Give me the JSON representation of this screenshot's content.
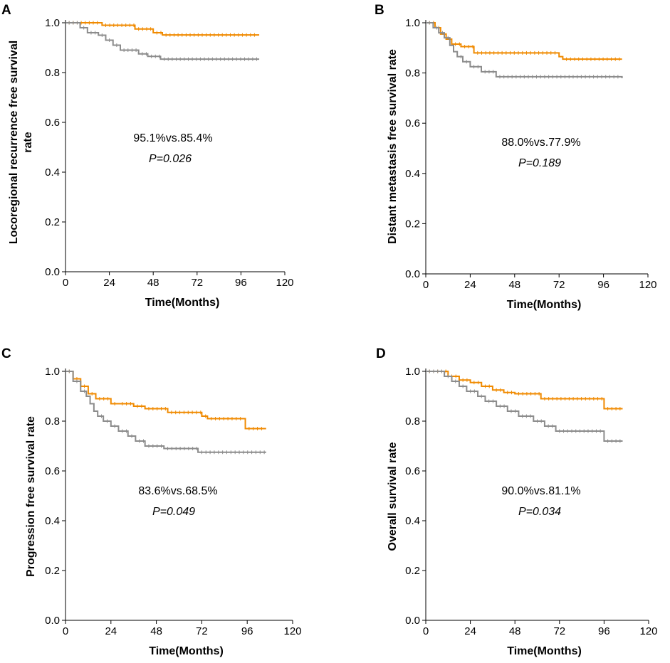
{
  "figure": {
    "panels": [
      "A",
      "B",
      "C",
      "D"
    ]
  },
  "colors": {
    "series_orange": "#F08A00",
    "series_gray": "#8C8C8C",
    "axis": "#000000"
  },
  "chart_data": [
    {
      "panel": "A",
      "type": "line",
      "title": "",
      "xlabel": "Time(Months)",
      "ylabel_lines": [
        "Locoregional recurrence free survival",
        "rate"
      ],
      "xlim": [
        0,
        120
      ],
      "ylim": [
        0,
        1.0
      ],
      "xticks": [
        0,
        24,
        48,
        72,
        96,
        120
      ],
      "yticks": [
        "0.0",
        "0.2",
        "0.4",
        "0.6",
        "0.8",
        "1.0"
      ],
      "annotation": "95.1%vs.85.4%",
      "pvalue": "P=0.026",
      "series": [
        {
          "name": "orange",
          "color": "#F08A00",
          "x": [
            0,
            20,
            38,
            48,
            53,
            106
          ],
          "y": [
            1.0,
            0.99,
            0.975,
            0.96,
            0.951,
            0.951
          ]
        },
        {
          "name": "gray",
          "color": "#8C8C8C",
          "x": [
            0,
            8,
            12,
            18,
            22,
            26,
            30,
            40,
            45,
            52,
            106
          ],
          "y": [
            1.0,
            0.98,
            0.96,
            0.95,
            0.93,
            0.91,
            0.89,
            0.875,
            0.865,
            0.854,
            0.854
          ]
        }
      ]
    },
    {
      "panel": "B",
      "type": "line",
      "title": "",
      "xlabel": "Time(Months)",
      "ylabel_lines": [
        "Distant metastasis free survival rate"
      ],
      "xlim": [
        0,
        120
      ],
      "ylim": [
        0,
        1.0
      ],
      "xticks": [
        0,
        24,
        48,
        72,
        96,
        120
      ],
      "yticks": [
        "0.0",
        "0.2",
        "0.4",
        "0.6",
        "0.8",
        "1.0"
      ],
      "annotation": "88.0%vs.77.9%",
      "pvalue": "P=0.189",
      "series": [
        {
          "name": "orange",
          "color": "#F08A00",
          "x": [
            0,
            5,
            8,
            11,
            14,
            19,
            26,
            72,
            74,
            106
          ],
          "y": [
            1.0,
            0.98,
            0.955,
            0.935,
            0.915,
            0.905,
            0.88,
            0.865,
            0.855,
            0.855
          ]
        },
        {
          "name": "gray",
          "color": "#8C8C8C",
          "x": [
            0,
            4,
            7,
            10,
            13,
            15,
            17,
            20,
            24,
            30,
            38,
            106
          ],
          "y": [
            1.0,
            0.98,
            0.96,
            0.94,
            0.91,
            0.885,
            0.865,
            0.845,
            0.825,
            0.805,
            0.785,
            0.779
          ]
        }
      ]
    },
    {
      "panel": "C",
      "type": "line",
      "title": "",
      "xlabel": "Time(Months)",
      "ylabel_lines": [
        "Progression free survival rate"
      ],
      "xlim": [
        0,
        120
      ],
      "ylim": [
        0,
        1.0
      ],
      "xticks": [
        0,
        24,
        48,
        72,
        96,
        120
      ],
      "yticks": [
        "0.0",
        "0.2",
        "0.4",
        "0.6",
        "0.8",
        "1.0"
      ],
      "annotation": "83.6%vs.68.5%",
      "pvalue": "P=0.049",
      "series": [
        {
          "name": "orange",
          "color": "#F08A00",
          "x": [
            0,
            4,
            8,
            12,
            16,
            24,
            28,
            36,
            42,
            54,
            72,
            75,
            95,
            106
          ],
          "y": [
            1.0,
            0.97,
            0.94,
            0.91,
            0.89,
            0.87,
            0.87,
            0.86,
            0.85,
            0.835,
            0.82,
            0.81,
            0.77,
            0.77
          ]
        },
        {
          "name": "gray",
          "color": "#8C8C8C",
          "x": [
            0,
            4,
            8,
            11,
            13,
            15,
            17,
            20,
            24,
            28,
            33,
            37,
            42,
            52,
            70,
            106
          ],
          "y": [
            1.0,
            0.96,
            0.92,
            0.9,
            0.87,
            0.84,
            0.82,
            0.8,
            0.78,
            0.76,
            0.74,
            0.72,
            0.7,
            0.69,
            0.675,
            0.675
          ]
        }
      ]
    },
    {
      "panel": "D",
      "type": "line",
      "title": "",
      "xlabel": "Time(Months)",
      "ylabel_lines": [
        "Overall survival rate"
      ],
      "xlim": [
        0,
        120
      ],
      "ylim": [
        0,
        1.0
      ],
      "xticks": [
        0,
        24,
        48,
        72,
        96,
        120
      ],
      "yticks": [
        "0.0",
        "0.2",
        "0.4",
        "0.6",
        "0.8",
        "1.0"
      ],
      "annotation": "90.0%vs.81.1%",
      "pvalue": "P=0.034",
      "series": [
        {
          "name": "orange",
          "color": "#F08A00",
          "x": [
            0,
            12,
            18,
            24,
            30,
            36,
            42,
            48,
            62,
            96,
            106
          ],
          "y": [
            1.0,
            0.98,
            0.965,
            0.955,
            0.94,
            0.925,
            0.915,
            0.91,
            0.89,
            0.85,
            0.85
          ]
        },
        {
          "name": "gray",
          "color": "#8C8C8C",
          "x": [
            0,
            10,
            14,
            18,
            22,
            28,
            32,
            38,
            44,
            50,
            58,
            64,
            70,
            96,
            106
          ],
          "y": [
            1.0,
            0.98,
            0.96,
            0.94,
            0.92,
            0.9,
            0.88,
            0.86,
            0.84,
            0.82,
            0.8,
            0.78,
            0.76,
            0.72,
            0.72
          ]
        }
      ]
    }
  ]
}
